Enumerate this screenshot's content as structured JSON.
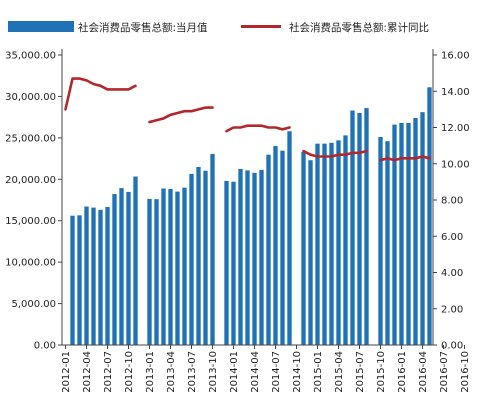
{
  "chart_data": {
    "type": "bar+line",
    "legend": {
      "position": "top",
      "bar_label": "社会消费品零售总额:当月值",
      "line_label": "社会消费品零售总额:累计同比"
    },
    "colors": {
      "bar": "#1f72b6",
      "line": "#b3282d",
      "axis": "#444444"
    },
    "y_left": {
      "min": 0,
      "max": 35000,
      "step": 5000,
      "format": "comma2"
    },
    "y_right": {
      "min": 0,
      "max": 16,
      "step": 2,
      "format": "fixed2"
    },
    "x_labels": [
      "2012-01",
      "2012-04",
      "2012-07",
      "2012-10",
      "2013-01",
      "2013-04",
      "2013-07",
      "2013-10",
      "2014-01",
      "2014-04",
      "2014-07",
      "2014-10",
      "2015-01",
      "2015-04",
      "2015-07",
      "2015-10",
      "2016-01",
      "2016-04",
      "2016-07",
      "2016-10"
    ],
    "grid": false,
    "series": [
      {
        "name": "社会消费品零售总额:当月值",
        "kind": "bar",
        "axis": "left",
        "values": [
          null,
          15603,
          15650,
          16715,
          16584,
          16314,
          16658,
          18227,
          18934,
          18477,
          20334,
          null,
          17632,
          17600,
          18886,
          18826,
          18513,
          18988,
          20653,
          21492,
          21033,
          23060,
          null,
          19800,
          19705,
          21249,
          21072,
          20781,
          21137,
          22967,
          24016,
          23451,
          25801,
          null,
          23300,
          22300,
          24300,
          24300,
          24400,
          24700,
          25300,
          28300,
          28000,
          28600,
          null,
          25100,
          24600,
          26600,
          26800,
          26800,
          27400,
          28100,
          31100
        ]
      },
      {
        "name": "社会消费品零售总额:累计同比",
        "kind": "line",
        "axis": "right",
        "values": [
          13.0,
          14.7,
          14.7,
          14.6,
          14.4,
          14.3,
          14.1,
          14.1,
          14.1,
          14.1,
          14.3,
          null,
          12.3,
          12.4,
          12.5,
          12.7,
          12.8,
          12.9,
          12.9,
          13.0,
          13.1,
          13.1,
          null,
          11.8,
          12.0,
          12.0,
          12.1,
          12.1,
          12.1,
          12.0,
          12.0,
          11.9,
          12.0,
          null,
          10.7,
          10.5,
          10.4,
          10.4,
          10.4,
          10.5,
          10.5,
          10.6,
          10.6,
          10.7,
          null,
          10.2,
          10.3,
          10.2,
          10.3,
          10.3,
          10.3,
          10.4,
          10.3
        ]
      }
    ]
  }
}
